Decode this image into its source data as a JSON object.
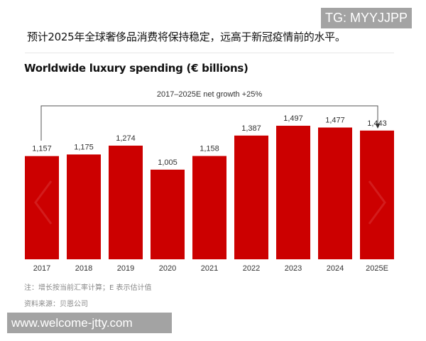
{
  "headline": "预计2025年全球奢侈品消费将保持稳定，远高于新冠疫情前的水平。",
  "chart_data": {
    "type": "bar",
    "title": "Worldwide luxury spending (€ billions)",
    "categories": [
      "2017",
      "2018",
      "2019",
      "2020",
      "2021",
      "2022",
      "2023",
      "2024",
      "2025E"
    ],
    "values": [
      1157,
      1175,
      1274,
      1005,
      1158,
      1387,
      1497,
      1477,
      1443
    ],
    "data_labels": [
      "1,157",
      "1,175",
      "1,274",
      "1,005",
      "1,158",
      "1,387",
      "1,497",
      "1,477",
      "1,443"
    ],
    "annotation": "2017–2025E net growth +25%",
    "ylim": [
      0,
      1500
    ],
    "bar_color": "#cc0000",
    "grid": false
  },
  "notes": {
    "note": "注：增长按当前汇率计算；E 表示估计值",
    "source": "资料来源：贝恩公司"
  },
  "watermarks": {
    "top": "TG: MYYJJPP",
    "bottom": "www.welcome-jtty.com"
  }
}
